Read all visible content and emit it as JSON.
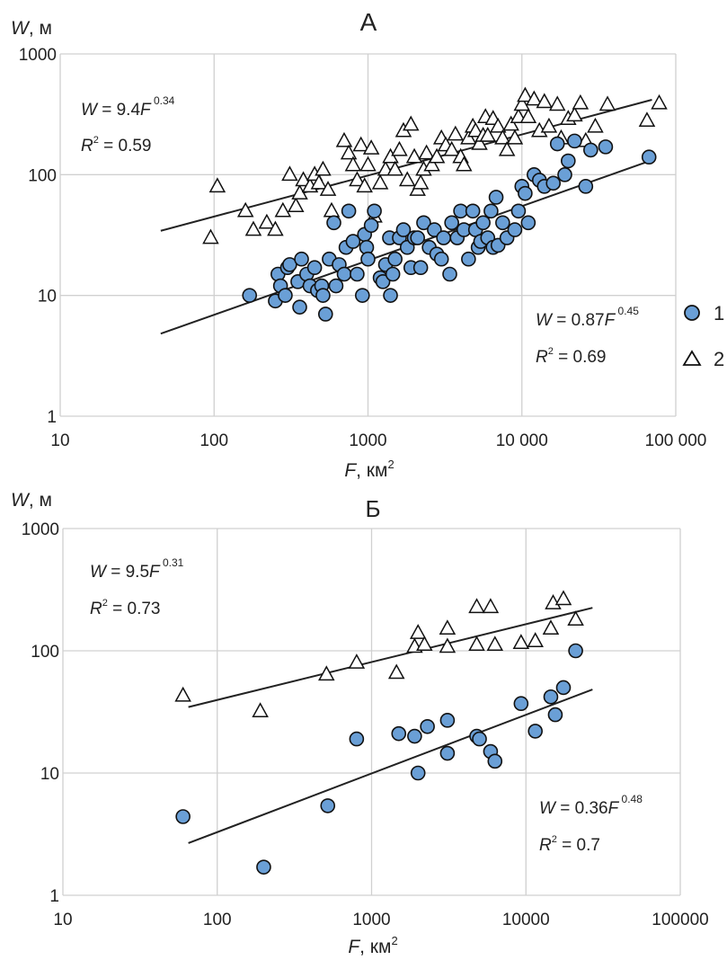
{
  "legend": {
    "items": [
      {
        "label": "1",
        "marker": "circle"
      },
      {
        "label": "2",
        "marker": "triangle"
      }
    ]
  },
  "colors": {
    "circle_fill": "#6a9fd6",
    "triangle_fill": "#ffffff",
    "marker_stroke": "#111111",
    "line": "#222222",
    "grid": "#d0d0d0",
    "text": "#222222"
  },
  "chart_data": [
    {
      "type": "scatter",
      "title": "А",
      "xlabel": {
        "var": "F",
        "rest": ", км",
        "sup": "2"
      },
      "ylabel": {
        "var": "W",
        "rest": ", м"
      },
      "xscale": "log",
      "yscale": "log",
      "xlim": [
        10,
        100000
      ],
      "ylim": [
        1,
        1000
      ],
      "xticks": [
        "10",
        "100",
        "1000",
        "10 000",
        "100 000"
      ],
      "yticks": [
        "1",
        "10",
        "100",
        "1000"
      ],
      "grid": true,
      "series": [
        {
          "name": "1",
          "marker": "circle",
          "fit": {
            "a": 0.87,
            "b": 0.45,
            "x_range": [
              45,
              70000
            ],
            "eq_coef": "0.87",
            "eq_exp": "0.45",
            "r2": "0.69"
          },
          "points": [
            [
              170,
              10
            ],
            [
              250,
              9
            ],
            [
              260,
              15
            ],
            [
              270,
              12
            ],
            [
              290,
              10
            ],
            [
              300,
              17
            ],
            [
              310,
              18
            ],
            [
              350,
              13
            ],
            [
              360,
              8
            ],
            [
              370,
              20
            ],
            [
              400,
              15
            ],
            [
              420,
              12
            ],
            [
              450,
              17
            ],
            [
              470,
              11
            ],
            [
              500,
              12
            ],
            [
              510,
              10
            ],
            [
              530,
              7
            ],
            [
              560,
              20
            ],
            [
              600,
              40
            ],
            [
              620,
              12
            ],
            [
              650,
              18
            ],
            [
              700,
              15
            ],
            [
              720,
              25
            ],
            [
              750,
              50
            ],
            [
              800,
              28
            ],
            [
              850,
              15
            ],
            [
              920,
              10
            ],
            [
              950,
              32
            ],
            [
              980,
              25
            ],
            [
              1000,
              20
            ],
            [
              1050,
              38
            ],
            [
              1100,
              50
            ],
            [
              1200,
              14
            ],
            [
              1250,
              13
            ],
            [
              1300,
              18
            ],
            [
              1380,
              30
            ],
            [
              1400,
              10
            ],
            [
              1450,
              15
            ],
            [
              1500,
              20
            ],
            [
              1600,
              30
            ],
            [
              1700,
              35
            ],
            [
              1800,
              25
            ],
            [
              1900,
              17
            ],
            [
              2000,
              30
            ],
            [
              2100,
              30
            ],
            [
              2200,
              17
            ],
            [
              2300,
              40
            ],
            [
              2500,
              25
            ],
            [
              2700,
              35
            ],
            [
              2800,
              22
            ],
            [
              3000,
              20
            ],
            [
              3100,
              30
            ],
            [
              3400,
              15
            ],
            [
              3500,
              40
            ],
            [
              3800,
              30
            ],
            [
              4000,
              50
            ],
            [
              4200,
              35
            ],
            [
              4500,
              20
            ],
            [
              4800,
              50
            ],
            [
              5000,
              35
            ],
            [
              5200,
              25
            ],
            [
              5400,
              28
            ],
            [
              5600,
              40
            ],
            [
              6000,
              30
            ],
            [
              6300,
              50
            ],
            [
              6500,
              25
            ],
            [
              6800,
              65
            ],
            [
              7000,
              26
            ],
            [
              7500,
              40
            ],
            [
              8000,
              30
            ],
            [
              9000,
              35
            ],
            [
              9500,
              50
            ],
            [
              10000,
              80
            ],
            [
              10500,
              70
            ],
            [
              11000,
              40
            ],
            [
              12000,
              100
            ],
            [
              13000,
              90
            ],
            [
              14000,
              80
            ],
            [
              16000,
              85
            ],
            [
              17000,
              180
            ],
            [
              19000,
              100
            ],
            [
              20000,
              130
            ],
            [
              22000,
              190
            ],
            [
              26000,
              80
            ],
            [
              28000,
              160
            ],
            [
              35000,
              170
            ],
            [
              67000,
              140
            ]
          ]
        },
        {
          "name": "2",
          "marker": "triangle",
          "fit": {
            "a": 9.4,
            "b": 0.34,
            "x_range": [
              45,
              70000
            ],
            "eq_coef": "9.4",
            "eq_exp": "0.34",
            "r2": "0.59"
          },
          "points": [
            [
              95,
              30
            ],
            [
              105,
              80
            ],
            [
              160,
              50
            ],
            [
              180,
              35
            ],
            [
              220,
              40
            ],
            [
              250,
              35
            ],
            [
              280,
              50
            ],
            [
              310,
              100
            ],
            [
              340,
              55
            ],
            [
              360,
              70
            ],
            [
              380,
              90
            ],
            [
              420,
              80
            ],
            [
              450,
              100
            ],
            [
              480,
              85
            ],
            [
              510,
              110
            ],
            [
              550,
              75
            ],
            [
              580,
              50
            ],
            [
              700,
              190
            ],
            [
              750,
              150
            ],
            [
              800,
              120
            ],
            [
              850,
              90
            ],
            [
              900,
              175
            ],
            [
              950,
              80
            ],
            [
              1000,
              120
            ],
            [
              1050,
              165
            ],
            [
              1100,
              45
            ],
            [
              1200,
              85
            ],
            [
              1300,
              110
            ],
            [
              1400,
              140
            ],
            [
              1500,
              110
            ],
            [
              1600,
              160
            ],
            [
              1700,
              230
            ],
            [
              1800,
              90
            ],
            [
              1900,
              260
            ],
            [
              2000,
              140
            ],
            [
              2100,
              75
            ],
            [
              2200,
              85
            ],
            [
              2300,
              110
            ],
            [
              2400,
              150
            ],
            [
              2600,
              120
            ],
            [
              2800,
              140
            ],
            [
              3000,
              200
            ],
            [
              3200,
              175
            ],
            [
              3500,
              160
            ],
            [
              3700,
              215
            ],
            [
              4000,
              140
            ],
            [
              4200,
              120
            ],
            [
              4500,
              200
            ],
            [
              4800,
              250
            ],
            [
              5000,
              230
            ],
            [
              5300,
              180
            ],
            [
              5600,
              210
            ],
            [
              5800,
              300
            ],
            [
              6000,
              210
            ],
            [
              6500,
              290
            ],
            [
              7000,
              250
            ],
            [
              7500,
              200
            ],
            [
              8000,
              160
            ],
            [
              8500,
              260
            ],
            [
              9000,
              200
            ],
            [
              9500,
              300
            ],
            [
              10000,
              380
            ],
            [
              10500,
              450
            ],
            [
              11000,
              300
            ],
            [
              12000,
              420
            ],
            [
              13000,
              230
            ],
            [
              14000,
              400
            ],
            [
              15000,
              250
            ],
            [
              17000,
              380
            ],
            [
              18000,
              200
            ],
            [
              20000,
              290
            ],
            [
              22000,
              310
            ],
            [
              24000,
              390
            ],
            [
              26000,
              190
            ],
            [
              30000,
              250
            ],
            [
              36000,
              380
            ],
            [
              65000,
              280
            ],
            [
              78000,
              390
            ]
          ]
        }
      ]
    },
    {
      "type": "scatter",
      "title": "Б",
      "xlabel": {
        "var": "F",
        "rest": ", км",
        "sup": "2"
      },
      "ylabel": {
        "var": "W",
        "rest": ", м"
      },
      "xscale": "log",
      "yscale": "log",
      "xlim": [
        10,
        100000
      ],
      "ylim": [
        1,
        1000
      ],
      "xticks": [
        "10",
        "100",
        "1000",
        "10000",
        "100000"
      ],
      "yticks": [
        "1",
        "10",
        "100",
        "1000"
      ],
      "grid": true,
      "series": [
        {
          "name": "1",
          "marker": "circle",
          "fit": {
            "a": 0.36,
            "b": 0.48,
            "x_range": [
              65,
              27000
            ],
            "eq_coef": "0.36",
            "eq_exp": "0.48",
            "r2": "0.7"
          },
          "points": [
            [
              60,
              4.4
            ],
            [
              200,
              1.7
            ],
            [
              520,
              5.4
            ],
            [
              800,
              19
            ],
            [
              1500,
              21
            ],
            [
              1900,
              20
            ],
            [
              2000,
              10
            ],
            [
              2300,
              24
            ],
            [
              3100,
              27
            ],
            [
              3100,
              14.5
            ],
            [
              4800,
              20
            ],
            [
              5000,
              19
            ],
            [
              5900,
              15
            ],
            [
              6300,
              12.5
            ],
            [
              9300,
              37
            ],
            [
              11500,
              22
            ],
            [
              14500,
              42
            ],
            [
              15500,
              30
            ],
            [
              17500,
              50
            ],
            [
              21000,
              100
            ]
          ]
        },
        {
          "name": "2",
          "marker": "triangle",
          "fit": {
            "a": 9.5,
            "b": 0.31,
            "x_range": [
              65,
              27000
            ],
            "eq_coef": "9.5",
            "eq_exp": "0.31",
            "r2": "0.73"
          },
          "points": [
            [
              60,
              43
            ],
            [
              190,
              32
            ],
            [
              510,
              64
            ],
            [
              800,
              80
            ],
            [
              1450,
              66
            ],
            [
              1900,
              108
            ],
            [
              2000,
              140
            ],
            [
              2200,
              112
            ],
            [
              3100,
              152
            ],
            [
              3100,
              108
            ],
            [
              4800,
              228
            ],
            [
              4800,
              112
            ],
            [
              5900,
              228
            ],
            [
              6300,
              112
            ],
            [
              9300,
              116
            ],
            [
              11500,
              120
            ],
            [
              14500,
              152
            ],
            [
              15000,
              245
            ],
            [
              17500,
              265
            ],
            [
              21000,
              180
            ]
          ]
        }
      ]
    }
  ]
}
